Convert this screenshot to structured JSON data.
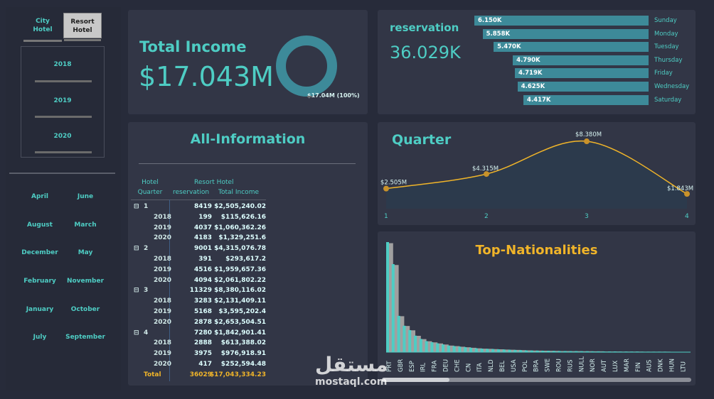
{
  "slicers": {
    "hotel": [
      {
        "label_line1": "City",
        "label_line2": "Hotel",
        "selected": false
      },
      {
        "label_line1": "Resort",
        "label_line2": "Hotel",
        "selected": true
      }
    ],
    "years": [
      "2018",
      "2019",
      "2020"
    ],
    "months": [
      [
        "April",
        "June"
      ],
      [
        "August",
        "March"
      ],
      [
        "December",
        "May"
      ],
      [
        "February",
        "November"
      ],
      [
        "January",
        "October"
      ],
      [
        "July",
        "September"
      ]
    ]
  },
  "total_income": {
    "title": "Total Income",
    "value": "$17.043M",
    "donut_label": "$17.04M (100%)",
    "donut_share": 1.0,
    "donut_color": "#3d8a99"
  },
  "reservation": {
    "title": "reservation",
    "value": "36.029K",
    "bar_color": "#3d8a99",
    "bars": [
      {
        "day": "Sunday",
        "label": "6.150K",
        "value": 6150
      },
      {
        "day": "Monday",
        "label": "5.858K",
        "value": 5858
      },
      {
        "day": "Tuesday",
        "label": "5.470K",
        "value": 5470
      },
      {
        "day": "Thursday",
        "label": "4.790K",
        "value": 4790
      },
      {
        "day": "Friday",
        "label": "4.719K",
        "value": 4719
      },
      {
        "day": "Wednesday",
        "label": "4.625K",
        "value": 4625
      },
      {
        "day": "Saturday",
        "label": "4.417K",
        "value": 4417
      }
    ]
  },
  "all_info": {
    "title": "All-Information",
    "headers": {
      "hotel": "Hotel",
      "quarter": "Quarter",
      "resort": "Resort Hotel",
      "reservation": "reservation",
      "income": "Total Income"
    },
    "rows": [
      {
        "type": "q",
        "label": "1",
        "res": "8419",
        "inc": "$2,505,240.02"
      },
      {
        "type": "y",
        "label": "2018",
        "res": "199",
        "inc": "$115,626.16"
      },
      {
        "type": "y",
        "label": "2019",
        "res": "4037",
        "inc": "$1,060,362.26"
      },
      {
        "type": "y",
        "label": "2020",
        "res": "4183",
        "inc": "$1,329,251.6"
      },
      {
        "type": "q",
        "label": "2",
        "res": "9001",
        "inc": "$4,315,076.78"
      },
      {
        "type": "y",
        "label": "2018",
        "res": "391",
        "inc": "$293,617.2"
      },
      {
        "type": "y",
        "label": "2019",
        "res": "4516",
        "inc": "$1,959,657.36"
      },
      {
        "type": "y",
        "label": "2020",
        "res": "4094",
        "inc": "$2,061,802.22"
      },
      {
        "type": "q",
        "label": "3",
        "res": "11329",
        "inc": "$8,380,116.02"
      },
      {
        "type": "y",
        "label": "2018",
        "res": "3283",
        "inc": "$2,131,409.11"
      },
      {
        "type": "y",
        "label": "2019",
        "res": "5168",
        "inc": "$3,595,202.4"
      },
      {
        "type": "y",
        "label": "2020",
        "res": "2878",
        "inc": "$2,653,504.51"
      },
      {
        "type": "q",
        "label": "4",
        "res": "7280",
        "inc": "$1,842,901.41"
      },
      {
        "type": "y",
        "label": "2018",
        "res": "2888",
        "inc": "$613,388.02"
      },
      {
        "type": "y",
        "label": "2019",
        "res": "3975",
        "inc": "$976,918.91"
      },
      {
        "type": "y",
        "label": "2020",
        "res": "417",
        "inc": "$252,594.48"
      },
      {
        "type": "t",
        "label": "Total",
        "res": "36029",
        "inc": "$17,043,334.23"
      }
    ]
  },
  "quarter_chart": {
    "title": "Quarter",
    "line_color": "#f0b429",
    "chart_data": {
      "type": "line",
      "x": [
        1,
        2,
        3,
        4
      ],
      "values": [
        2.505,
        4.315,
        8.38,
        1.843
      ],
      "labels": [
        "$2.505M",
        "$4.315M",
        "$8.380M",
        "$1.843M"
      ],
      "ylim": [
        0,
        9
      ]
    }
  },
  "nationalities": {
    "title": "Top-Nationalities",
    "colors": [
      "#4ecdc4",
      "#a0a0a0"
    ],
    "labels": [
      "PRT",
      "GBR",
      "ESP",
      "IRL",
      "FRA",
      "DEU",
      "CHE",
      "CN",
      "ITA",
      "NLD",
      "BEL",
      "USA",
      "POL",
      "BRA",
      "SWE",
      "ROU",
      "RUS",
      "NULL",
      "NOR",
      "AUT",
      "LUX",
      "MAR",
      "FIN",
      "AUS",
      "DNK",
      "HUN",
      "LTU"
    ],
    "chart_data": {
      "type": "bar",
      "values": [
        1.0,
        0.8,
        0.33,
        0.24,
        0.2,
        0.15,
        0.12,
        0.1,
        0.09,
        0.08,
        0.07,
        0.06,
        0.055,
        0.05,
        0.045,
        0.04,
        0.035,
        0.032,
        0.03,
        0.028,
        0.026,
        0.024,
        0.022,
        0.02,
        0.018,
        0.016,
        0.015,
        0.014,
        0.013,
        0.012,
        0.011,
        0.01,
        0.01,
        0.009,
        0.009,
        0.008,
        0.008,
        0.007,
        0.007,
        0.006,
        0.006,
        0.006,
        0.005,
        0.005,
        0.005,
        0.005,
        0.004,
        0.004,
        0.004,
        0.004,
        0.004,
        0.003,
        0.003,
        0.003
      ]
    }
  },
  "watermark": {
    "arabic": "مستقل",
    "latin": "mostaql.com"
  }
}
